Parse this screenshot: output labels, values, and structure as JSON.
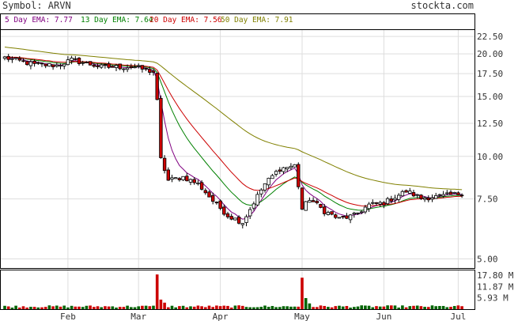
{
  "header": {
    "symbol_text": "Symbol: ARVN",
    "site": "stockta.com"
  },
  "legend": [
    {
      "text": "5 Day EMA: 7.77",
      "color": "#800080"
    },
    {
      "text": "13 Day EMA: 7.64",
      "color": "#008000"
    },
    {
      "text": "20 Day EMA: 7.56",
      "color": "#cc0000"
    },
    {
      "text": "50 Day EMA: 7.91",
      "color": "#808000"
    }
  ],
  "colors": {
    "up_fill": "#ffffff",
    "down_fill": "#cc0000",
    "candle_outline": "#000000",
    "volume_up": "#006400",
    "volume_down": "#cc0000",
    "grid": "#dddddd",
    "frame": "#000000"
  },
  "chart_data": [
    {
      "type": "candlestick",
      "title": "",
      "y_scale": "log",
      "ylim": [
        4.7,
        23.5
      ],
      "y_ticks": [
        {
          "value": 22.5,
          "label": "22.50"
        },
        {
          "value": 20.0,
          "label": "20.00"
        },
        {
          "value": 17.5,
          "label": "17.50"
        },
        {
          "value": 15.0,
          "label": "15.00"
        },
        {
          "value": 12.5,
          "label": "12.50"
        },
        {
          "value": 10.0,
          "label": "10.00"
        },
        {
          "value": 7.5,
          "label": "7.50"
        },
        {
          "value": 5.0,
          "label": "5.00"
        }
      ],
      "x_ticks": [
        {
          "index": 17,
          "label": "Feb"
        },
        {
          "index": 36,
          "label": "Mar"
        },
        {
          "index": 58,
          "label": "Apr"
        },
        {
          "index": 80,
          "label": "May"
        },
        {
          "index": 102,
          "label": "Jun"
        },
        {
          "index": 122,
          "label": "Jul"
        }
      ],
      "grid": true,
      "anchors": [
        [
          0,
          19.5
        ],
        [
          8,
          18.6
        ],
        [
          14,
          18.5
        ],
        [
          18,
          19.2
        ],
        [
          26,
          18.3
        ],
        [
          35,
          18.3
        ],
        [
          40,
          17.7
        ],
        [
          41,
          14.5
        ],
        [
          42,
          9.8
        ],
        [
          44,
          8.5
        ],
        [
          48,
          8.7
        ],
        [
          52,
          8.3
        ],
        [
          56,
          7.4
        ],
        [
          60,
          6.7
        ],
        [
          64,
          6.4
        ],
        [
          66,
          7.0
        ],
        [
          70,
          8.3
        ],
        [
          74,
          9.2
        ],
        [
          78,
          9.4
        ],
        [
          80,
          7.0
        ],
        [
          82,
          7.5
        ],
        [
          86,
          6.9
        ],
        [
          90,
          6.55
        ],
        [
          94,
          6.7
        ],
        [
          98,
          7.2
        ],
        [
          102,
          7.3
        ],
        [
          106,
          7.7
        ],
        [
          108,
          7.9
        ],
        [
          112,
          7.55
        ],
        [
          118,
          7.65
        ],
        [
          123,
          7.8
        ]
      ],
      "ema": [
        {
          "name": "5 Day EMA",
          "period": 5,
          "color": "#800080"
        },
        {
          "name": "13 Day EMA",
          "period": 13,
          "color": "#008000"
        },
        {
          "name": "20 Day EMA",
          "period": 20,
          "color": "#cc0000"
        },
        {
          "name": "50 Day EMA",
          "period": 50,
          "color": "#808000",
          "seed": 21.0
        }
      ]
    },
    {
      "type": "bar",
      "title": "",
      "ylim": [
        0,
        19.5
      ],
      "y_ticks": [
        {
          "value": 17.8,
          "label": "17.80 M"
        },
        {
          "value": 11.87,
          "label": "11.87 M"
        },
        {
          "value": 5.93,
          "label": "5.93 M"
        }
      ],
      "unit": "M",
      "spikes": [
        {
          "index": 41,
          "value": 18.2
        },
        {
          "index": 80,
          "value": 16.5
        },
        {
          "index": 42,
          "value": 5.0
        },
        {
          "index": 81,
          "value": 5.8
        },
        {
          "index": 43,
          "value": 3.4
        },
        {
          "index": 82,
          "value": 3.0
        }
      ]
    }
  ]
}
